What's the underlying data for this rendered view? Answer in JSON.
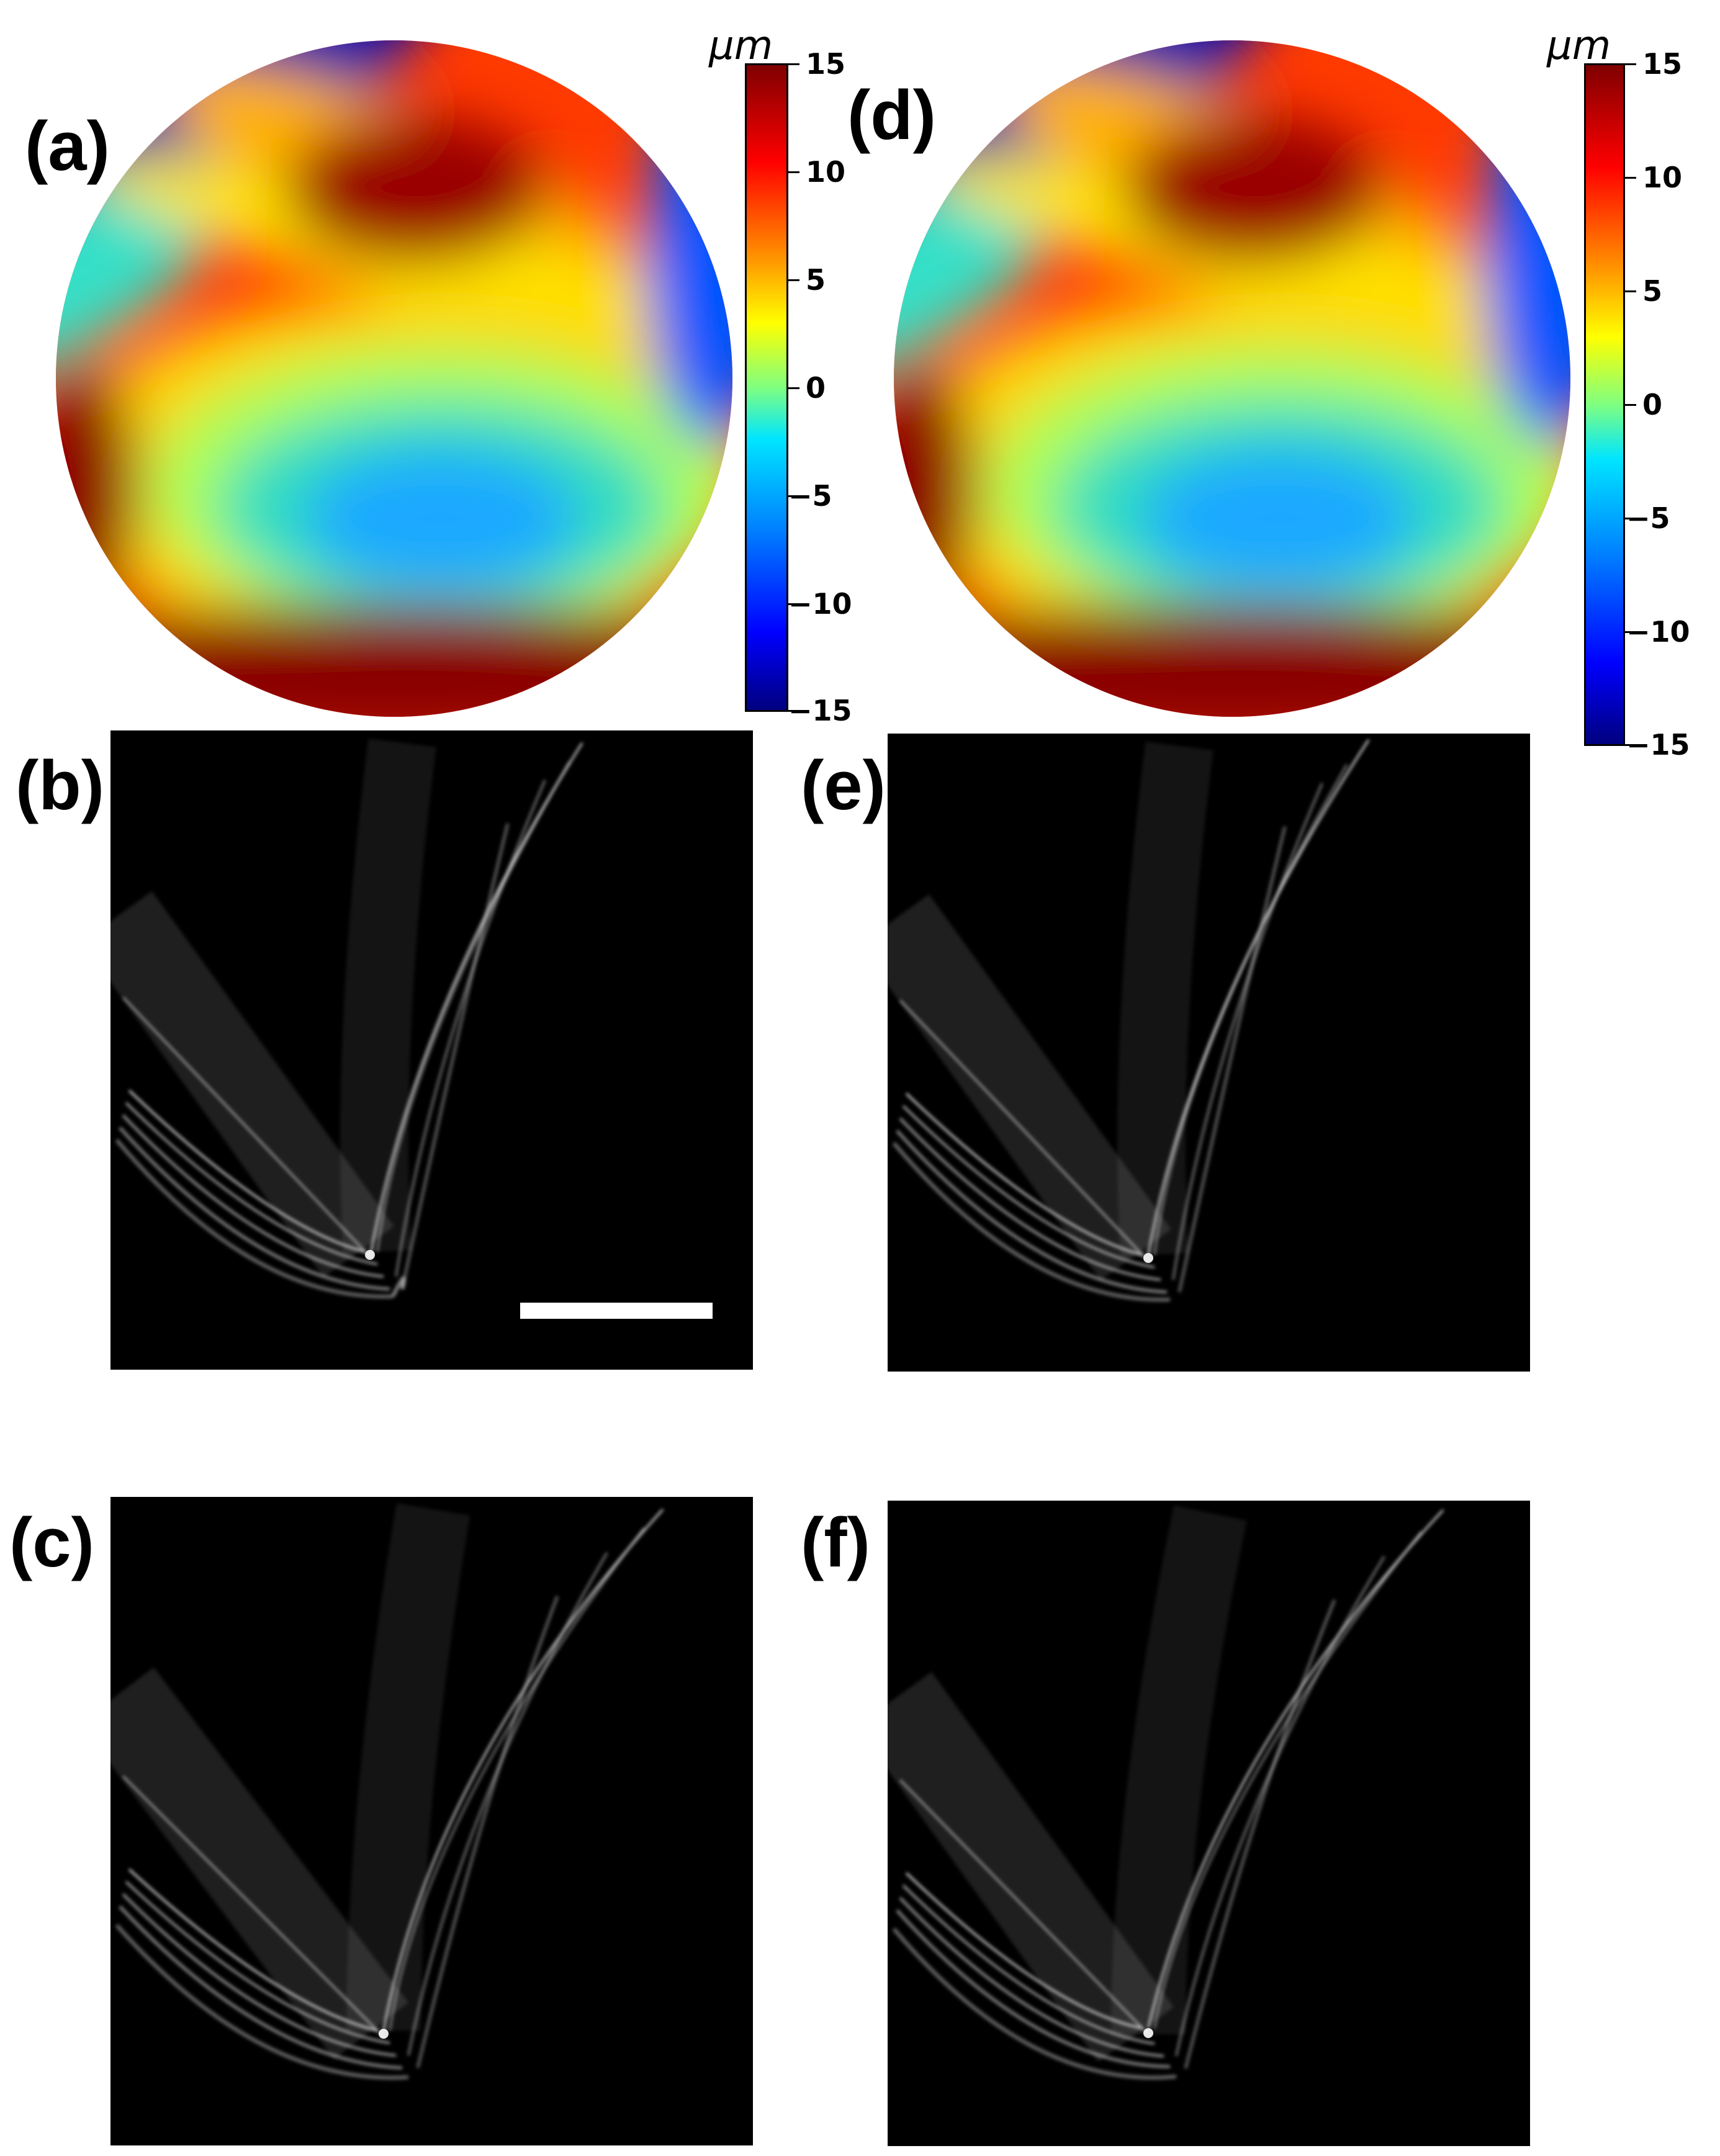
{
  "panels": [
    {
      "id": "a",
      "label": "(a)"
    },
    {
      "id": "b",
      "label": "(b)"
    },
    {
      "id": "c",
      "label": "(c)"
    },
    {
      "id": "d",
      "label": "(d)"
    },
    {
      "id": "e",
      "label": "(e)"
    },
    {
      "id": "f",
      "label": "(f)"
    }
  ],
  "colorbar": {
    "unit": "μm",
    "ticks": [
      "15",
      "10",
      "5",
      "0",
      "−5",
      "−10",
      "−15"
    ],
    "colormap": "jet",
    "range": [
      -15,
      15
    ]
  },
  "colors": {
    "background": "#ffffff",
    "psf_background": "#000000",
    "scalebar": "#ffffff"
  }
}
